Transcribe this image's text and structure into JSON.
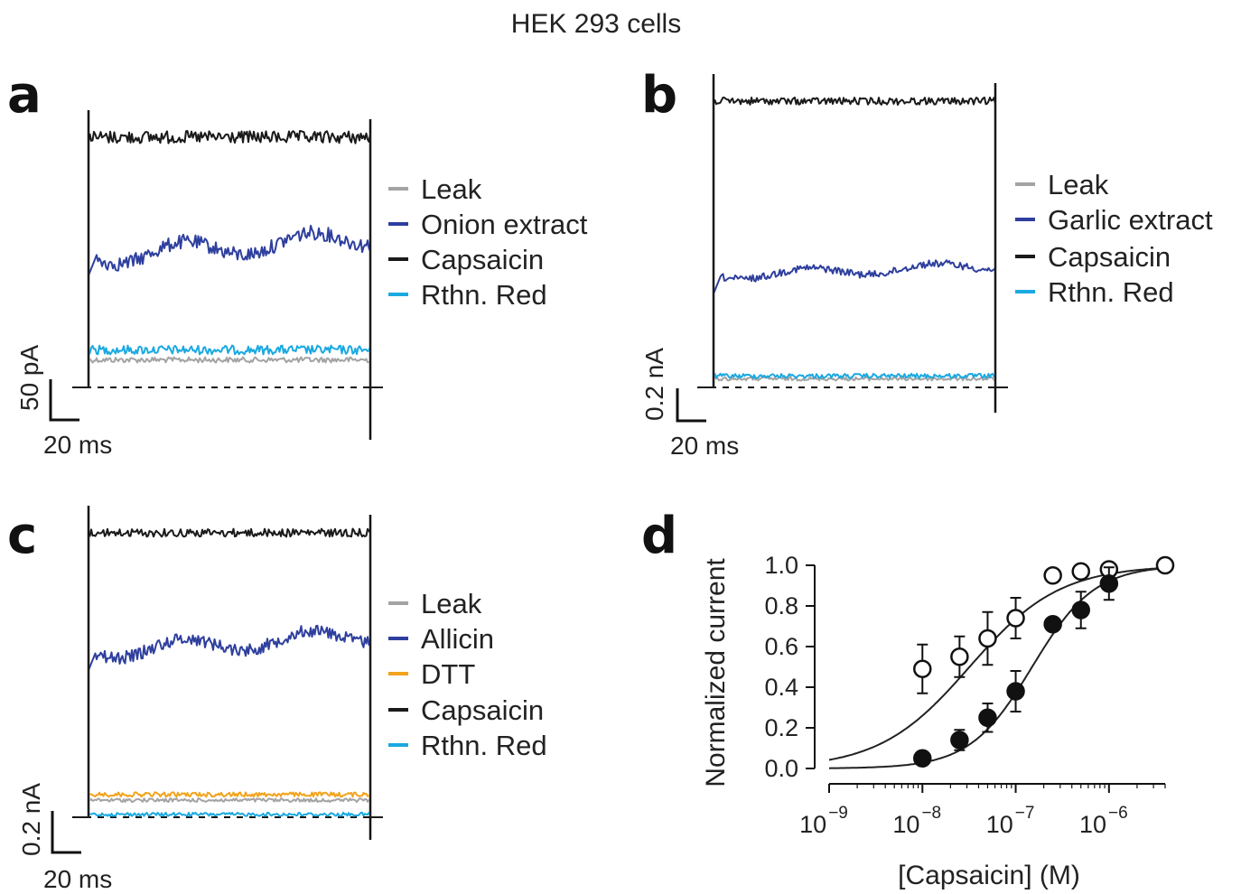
{
  "figure_title": "HEK 293 cells",
  "colors": {
    "leak": "#a3a3a3",
    "extract": "#2e3f9e",
    "capsaicin": "#1a1a1a",
    "rthn_red": "#1ba9e1",
    "dtt": "#f2a31b"
  },
  "panels": [
    {
      "letter": "a",
      "legend": [
        "Leak",
        "Onion extract",
        "Capsaicin",
        "Rthn. Red"
      ],
      "scale_y": "50 pA",
      "scale_x": "20 ms"
    },
    {
      "letter": "b",
      "legend": [
        "Leak",
        "Garlic extract",
        "Capsaicin",
        "Rthn. Red"
      ],
      "scale_y": "0.2 nA",
      "scale_x": "20 ms"
    },
    {
      "letter": "c",
      "legend": [
        "Leak",
        "Allicin",
        "DTT",
        "Capsaicin",
        "Rthn. Red"
      ],
      "scale_y": "0.2 nA",
      "scale_x": "20 ms"
    },
    {
      "letter": "d"
    }
  ],
  "chart_data": [
    {
      "type": "line",
      "panel": "a",
      "title": "HEK 293 cells",
      "series": [
        {
          "name": "Capsaicin",
          "relative_level": 1.0
        },
        {
          "name": "Onion extract",
          "relative_level": 0.52
        },
        {
          "name": "Rthn. Red",
          "relative_level": 0.15
        },
        {
          "name": "Leak",
          "relative_level": 0.11
        }
      ],
      "scale_bar": {
        "current": "50 pA",
        "time": "20 ms"
      }
    },
    {
      "type": "line",
      "panel": "b",
      "series": [
        {
          "name": "Capsaicin",
          "relative_level": 1.0
        },
        {
          "name": "Garlic extract",
          "relative_level": 0.39
        },
        {
          "name": "Rthn. Red",
          "relative_level": 0.04
        },
        {
          "name": "Leak",
          "relative_level": 0.03
        }
      ],
      "scale_bar": {
        "current": "0.2 nA",
        "time": "20 ms"
      }
    },
    {
      "type": "line",
      "panel": "c",
      "series": [
        {
          "name": "Capsaicin",
          "relative_level": 1.0
        },
        {
          "name": "Allicin",
          "relative_level": 0.58
        },
        {
          "name": "DTT",
          "relative_level": 0.08
        },
        {
          "name": "Leak",
          "relative_level": 0.06
        },
        {
          "name": "Rthn. Red",
          "relative_level": 0.01
        }
      ],
      "scale_bar": {
        "current": "0.2 nA",
        "time": "20 ms"
      }
    },
    {
      "type": "scatter",
      "panel": "d",
      "xlabel": "[Capsaicin] (M)",
      "ylabel": "Normalized current",
      "xscale": "log",
      "xlim": [
        1e-09,
        4e-06
      ],
      "ylim": [
        0.0,
        1.0
      ],
      "yticks": [
        "0.0",
        "0.2",
        "0.4",
        "0.6",
        "0.8",
        "1.0"
      ],
      "xticks": [
        {
          "base": "10",
          "exp": "−9"
        },
        {
          "base": "10",
          "exp": "−8"
        },
        {
          "base": "10",
          "exp": "−7"
        },
        {
          "base": "10",
          "exp": "−6"
        }
      ],
      "series": [
        {
          "marker": "open-circle",
          "x": [
            1e-08,
            2.5e-08,
            5e-08,
            1e-07,
            2.5e-07,
            5e-07,
            1e-06,
            4e-06
          ],
          "y": [
            0.49,
            0.55,
            0.64,
            0.74,
            0.95,
            0.97,
            0.98,
            1.0
          ],
          "err": [
            0.12,
            0.1,
            0.13,
            0.1,
            0.0,
            0.0,
            0.0,
            0.0
          ],
          "fit_ec50": 3.2e-08,
          "fit_hill": 0.9
        },
        {
          "marker": "filled-circle",
          "x": [
            1e-08,
            2.5e-08,
            5e-08,
            1e-07,
            2.5e-07,
            5e-07,
            1e-06
          ],
          "y": [
            0.05,
            0.14,
            0.25,
            0.38,
            0.71,
            0.78,
            0.91
          ],
          "err": [
            0.0,
            0.05,
            0.07,
            0.1,
            0.0,
            0.09,
            0.08
          ],
          "fit_ec50": 1.5e-07,
          "fit_hill": 1.3
        }
      ]
    }
  ]
}
